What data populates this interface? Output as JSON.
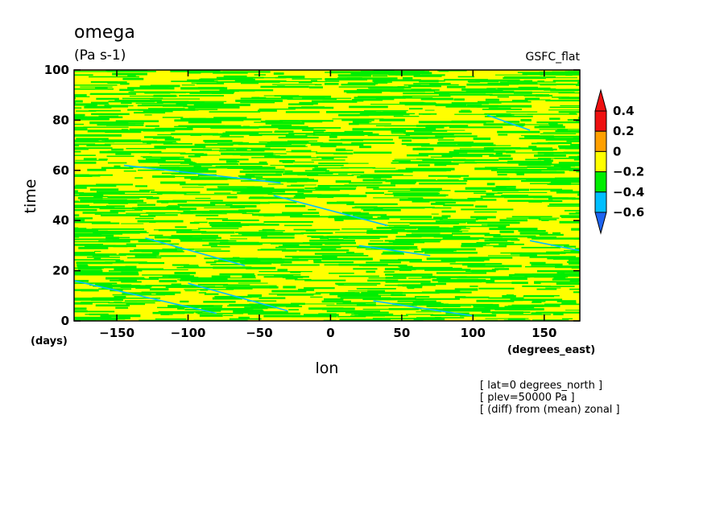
{
  "chart_data": {
    "type": "heatmap",
    "title": "omega",
    "units": "(Pa s-1)",
    "dataset": "GSFC_flat",
    "xlabel": "lon",
    "ylabel": "time",
    "x_units": "(degrees_east)",
    "y_units": "(days)",
    "xlim": [
      -180,
      175
    ],
    "ylim": [
      0,
      100
    ],
    "x_ticks": [
      -150,
      -100,
      -50,
      0,
      50,
      100,
      150
    ],
    "y_ticks": [
      0,
      20,
      40,
      60,
      80,
      100
    ],
    "x_tick_labels": [
      "−150",
      "−100",
      "−50",
      "0",
      "50",
      "100",
      "150"
    ],
    "y_tick_labels": [
      "0",
      "20",
      "40",
      "60",
      "80",
      "100"
    ],
    "colorbar": {
      "levels": [
        -0.6,
        -0.4,
        -0.2,
        0,
        0.2,
        0.4
      ],
      "labels": [
        "−0.6",
        "−0.4",
        "−0.2",
        "0",
        "0.2",
        "0.4"
      ],
      "colors": [
        "#1e64f0",
        "#00bfff",
        "#00ee00",
        "#ffff00",
        "#ffa000",
        "#ee1010"
      ],
      "extend": "both"
    },
    "annotations": [
      "[ lat=0 degrees_north ]",
      "[ plev=50000 Pa ]",
      "[ (diff) from (mean) zonal ]"
    ]
  }
}
